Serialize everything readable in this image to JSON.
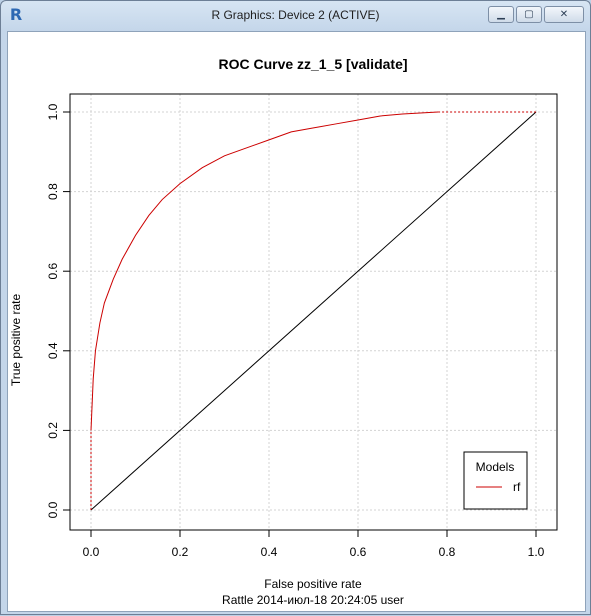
{
  "window": {
    "title": "R Graphics: Device 2 (ACTIVE)",
    "app_icon": "R",
    "controls": {
      "minimize": "minimize-icon",
      "restore": "restore-icon",
      "close": "close-icon"
    }
  },
  "chart_data": {
    "type": "line",
    "title": "ROC Curve  zz_1_5 [validate]",
    "xlabel": "False positive rate",
    "ylabel": "True positive rate",
    "subtitle": "Rattle 2014-июл-18 20:24:05 user",
    "xlim": [
      0,
      1
    ],
    "ylim": [
      0,
      1
    ],
    "x_ticks": [
      "0.0",
      "0.2",
      "0.4",
      "0.6",
      "0.8",
      "1.0"
    ],
    "y_ticks": [
      "0.0",
      "0.2",
      "0.4",
      "0.6",
      "0.8",
      "1.0"
    ],
    "grid": true,
    "legend": {
      "title": "Models",
      "position": "bottom-right",
      "entries": [
        {
          "label": "rf",
          "color": "#cc0000"
        }
      ]
    },
    "diagonal": {
      "x": [
        0,
        1
      ],
      "y": [
        0,
        1
      ],
      "color": "#000000"
    },
    "series": [
      {
        "name": "rf",
        "color": "#cc0000",
        "x": [
          0,
          0,
          0.005,
          0.01,
          0.02,
          0.03,
          0.05,
          0.07,
          0.1,
          0.13,
          0.16,
          0.2,
          0.25,
          0.3,
          0.35,
          0.4,
          0.45,
          0.5,
          0.55,
          0.6,
          0.65,
          0.7,
          0.75,
          0.78,
          1
        ],
        "y": [
          0,
          0.2,
          0.33,
          0.4,
          0.47,
          0.52,
          0.58,
          0.63,
          0.69,
          0.74,
          0.78,
          0.82,
          0.86,
          0.89,
          0.91,
          0.93,
          0.95,
          0.96,
          0.97,
          0.98,
          0.99,
          0.995,
          0.998,
          1.0,
          1.0
        ]
      }
    ]
  }
}
